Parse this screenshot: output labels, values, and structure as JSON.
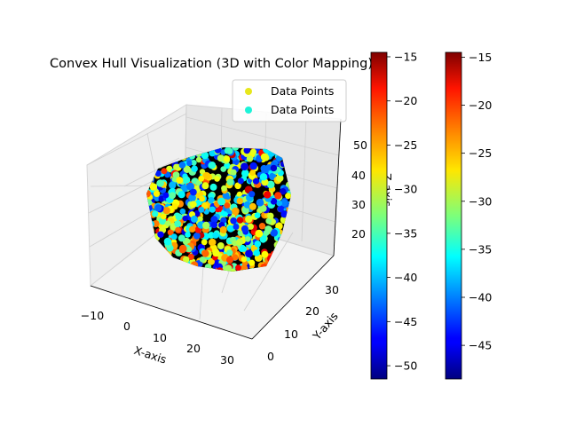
{
  "chart_data": {
    "type": "scatter",
    "title": "Convex Hull Visualization (3D with Color Mapping)",
    "xlabel": "X-axis",
    "ylabel": "Y-axis",
    "zlabel": "Z-axis",
    "x_ticks": [
      "−10",
      "0",
      "10",
      "20",
      "30"
    ],
    "y_ticks": [
      "0",
      "10",
      "20",
      "30"
    ],
    "z_ticks": [
      "20",
      "30",
      "40",
      "50"
    ],
    "xlim": [
      -12,
      33
    ],
    "ylim": [
      -2,
      36
    ],
    "zlim": [
      12,
      53
    ],
    "legend": {
      "placement": "top-right",
      "entries": [
        {
          "label": "Data Points",
          "color": "#e7e71c"
        },
        {
          "label": "Data Points",
          "color": "#1cf3d8"
        }
      ]
    },
    "colorbars": [
      {
        "ticks": [
          "−15",
          "−20",
          "−25",
          "−30",
          "−35",
          "−40",
          "−45",
          "−50"
        ],
        "range": [
          -51.5,
          -14.5
        ],
        "colormap": "jet"
      },
      {
        "ticks": [
          "−15",
          "−20",
          "−25",
          "−30",
          "−35",
          "−40",
          "−45"
        ],
        "range": [
          -48.5,
          -14.5
        ],
        "colormap": "jet"
      }
    ],
    "hull_color": "#000000",
    "point_count_shown": "many (several hundred)",
    "value_range": [
      -51.5,
      -14.5
    ]
  }
}
